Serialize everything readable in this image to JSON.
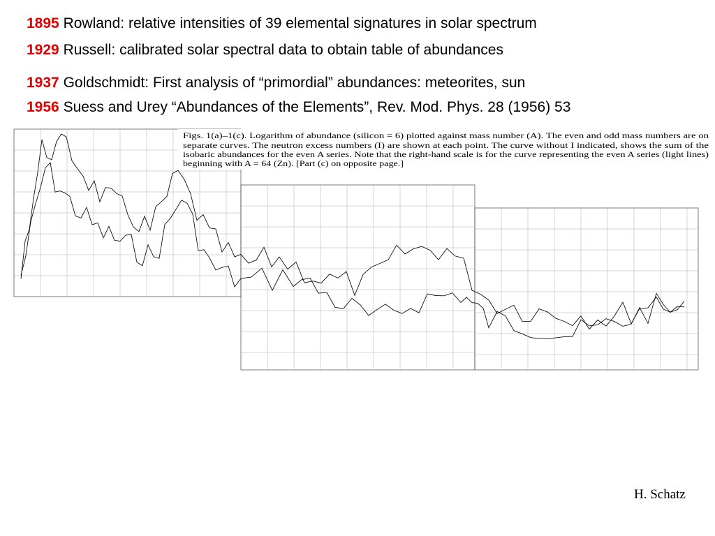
{
  "timeline": [
    {
      "year": "1895",
      "text": "Rowland: relative intensities of 39 elemental signatures in solar spectrum"
    },
    {
      "year": "1929",
      "text": "Russell: calibrated solar spectral data to obtain table of abundances"
    },
    {
      "year": "1937",
      "text": "Goldschmidt: First analysis of “primordial” abundances: meteorites, sun"
    },
    {
      "year": "1956",
      "text": "Suess and Urey “Abundances of the Elements”, Rev. Mod. Phys. 28 (1956) 53"
    }
  ],
  "figure": {
    "caption_lines": [
      "Figs. 1(a)–1(c). Logarithm of abundance (silicon = 6) plotted against mass number (A). The even and odd mass numbers are on",
      "separate curves. The neutron excess numbers (I) are shown at each point. The curve without I indicated, shows the sum of the",
      "isobaric abundances for the even A series. Note that the right-hand scale is for the curve representing the even A series (light lines)",
      "beginning with A = 64 (Zn). [Part (c) on opposite page.]"
    ]
  },
  "footer": {
    "author": "H. Schatz"
  }
}
